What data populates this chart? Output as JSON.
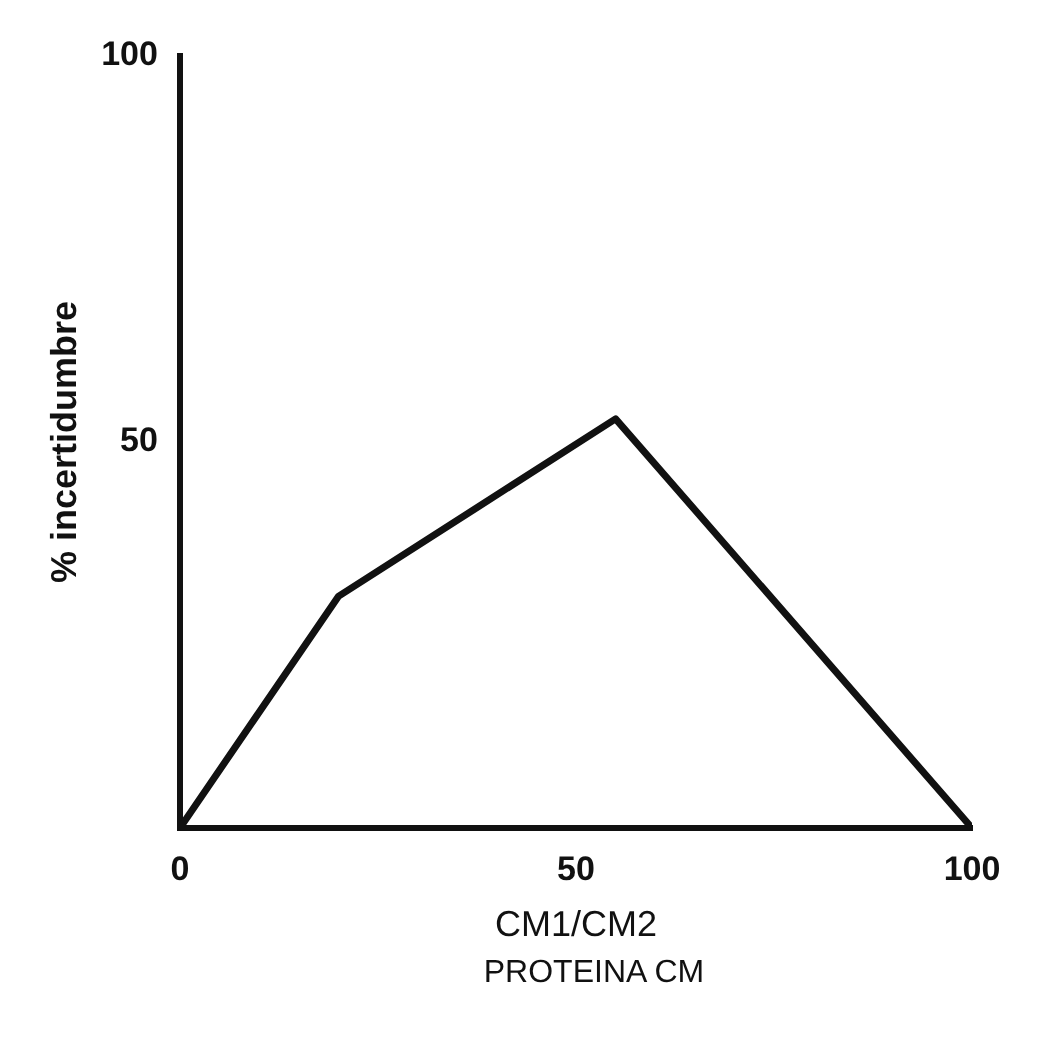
{
  "chart_data": {
    "type": "line",
    "xlabel": "CM1/CM2",
    "ylabel": "% incertidumbre",
    "annotations": [
      "PROTEINA CM"
    ],
    "x": [
      0,
      20,
      55,
      100
    ],
    "series": [
      {
        "color": "#111111",
        "values": [
          0,
          30,
          53,
          0
        ]
      }
    ],
    "xlim": [
      0,
      100
    ],
    "xticks": [
      0,
      50,
      100
    ],
    "ylim": [
      0,
      100
    ],
    "yticks": [
      50,
      100
    ],
    "grid": false,
    "legend": false,
    "marker": "none",
    "line_style": "solid"
  }
}
